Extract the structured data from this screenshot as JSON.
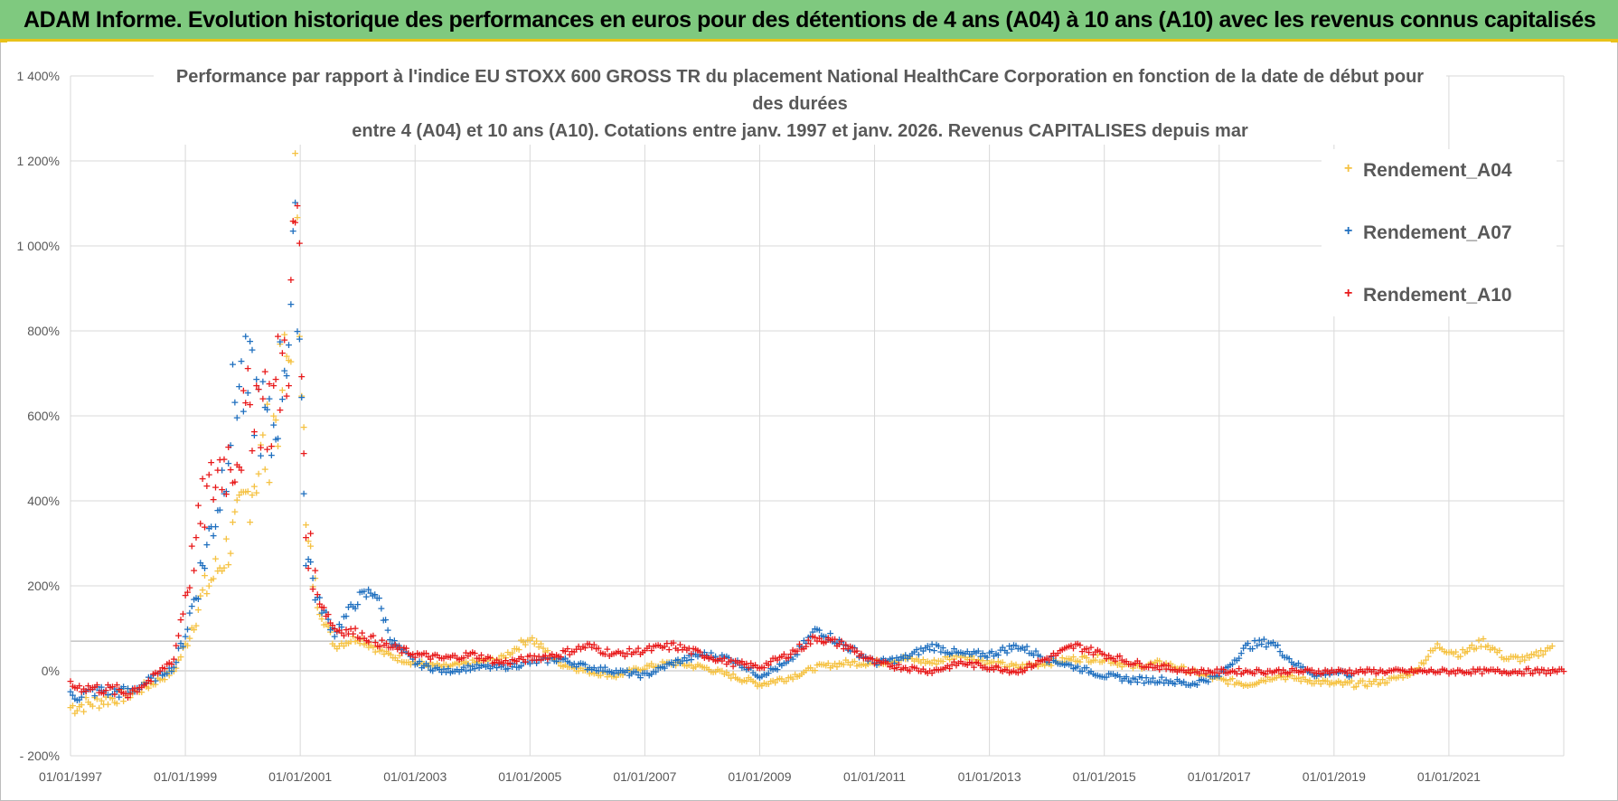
{
  "banner": {
    "title": "ADAM Informe. Evolution historique des performances en euros pour des détentions de 4 ans (A04) à 10 ans (A10) avec les revenus connus capitalisés"
  },
  "colors": {
    "banner_bg": "#7fc97f",
    "banner_accent": "#e8c21a",
    "A04": "#f5c242",
    "A07": "#1f6fbf",
    "A10": "#e8191a",
    "grid": "#d9d9d9",
    "text": "#595959"
  },
  "chart_data": {
    "type": "scatter",
    "title_lines": [
      "Performance par rapport à l'indice EU STOXX 600 GROSS TR  du placement National HealthCare Corporation en fonction de la date de début pour",
      "des durées",
      "entre 4 (A04) et 10 ans (A10). Cotations entre janv. 1997 et janv. 2026. Revenus CAPITALISES depuis mar"
    ],
    "xlabel": "",
    "ylabel": "",
    "x_range": [
      1997.0,
      2023.0
    ],
    "ylim": [
      -200,
      1400
    ],
    "x_tick_labels": [
      "01/01/1997",
      "01/01/1999",
      "01/01/2001",
      "01/01/2003",
      "01/01/2005",
      "01/01/2007",
      "01/01/2009",
      "01/01/2011",
      "01/01/2013",
      "01/01/2015",
      "01/01/2017",
      "01/01/2019",
      "01/01/2021"
    ],
    "x_tick_values": [
      1997,
      1999,
      2001,
      2003,
      2005,
      2007,
      2009,
      2011,
      2013,
      2015,
      2017,
      2019,
      2021
    ],
    "y_ticks": [
      -200,
      0,
      200,
      400,
      600,
      800,
      1000,
      1200,
      1400
    ],
    "y_tick_labels": [
      "- 200%",
      "0%",
      "200%",
      "400%",
      "600%",
      "800%",
      "1 000%",
      "1 200%",
      "1 400%"
    ],
    "legend_position": "top-right",
    "marker": "+",
    "series": [
      {
        "name": "Rendement_A04",
        "x": [
          1997.0,
          1997.5,
          1998.0,
          1998.4,
          1998.8,
          1999.0,
          1999.3,
          1999.6,
          1999.9,
          2000.2,
          2000.5,
          2000.8,
          2000.95,
          2001.1,
          2001.3,
          2001.6,
          2002.0,
          2002.5,
          2003.0,
          2003.5,
          2004.0,
          2004.5,
          2005.0,
          2005.5,
          2006.0,
          2006.5,
          2007.0,
          2007.5,
          2008.0,
          2008.5,
          2009.0,
          2009.5,
          2010.0,
          2010.5,
          2011.0,
          2011.5,
          2012.0,
          2012.5,
          2013.0,
          2013.5,
          2014.0,
          2014.5,
          2015.0,
          2015.5,
          2016.0,
          2016.5,
          2017.0,
          2017.5,
          2018.0,
          2018.5,
          2019.0,
          2019.5,
          2020.0,
          2020.4,
          2020.8,
          2021.2,
          2021.6,
          2022.0,
          2022.4,
          2022.8
        ],
        "values": [
          -85,
          -70,
          -55,
          -30,
          0,
          60,
          180,
          250,
          340,
          460,
          560,
          740,
          1170,
          320,
          160,
          60,
          80,
          40,
          20,
          10,
          20,
          30,
          80,
          20,
          0,
          -10,
          10,
          20,
          10,
          -10,
          -30,
          -15,
          10,
          20,
          20,
          30,
          20,
          40,
          20,
          10,
          20,
          30,
          30,
          10,
          20,
          0,
          -20,
          -30,
          -10,
          -20,
          -30,
          -30,
          -20,
          0,
          60,
          40,
          70,
          30,
          30,
          60
        ]
      },
      {
        "name": "Rendement_A07",
        "x": [
          1997.0,
          1997.5,
          1998.0,
          1998.4,
          1998.8,
          1999.0,
          1999.3,
          1999.6,
          1999.9,
          2000.2,
          2000.5,
          2000.8,
          2000.95,
          2001.1,
          2001.3,
          2001.6,
          2002.0,
          2002.3,
          2002.6,
          2003.0,
          2003.5,
          2004.0,
          2004.5,
          2005.0,
          2005.5,
          2006.0,
          2006.5,
          2007.0,
          2007.5,
          2008.0,
          2008.5,
          2009.0,
          2009.5,
          2010.0,
          2010.5,
          2011.0,
          2011.5,
          2012.0,
          2012.5,
          2013.0,
          2013.5,
          2014.0,
          2014.5,
          2015.0,
          2015.5,
          2016.0,
          2016.5,
          2017.0,
          2017.5,
          2017.9,
          2018.3,
          2018.7,
          2019.0,
          2019.3
        ],
        "values": [
          -60,
          -45,
          -50,
          -20,
          10,
          90,
          250,
          420,
          680,
          650,
          540,
          820,
          980,
          290,
          170,
          90,
          170,
          190,
          70,
          20,
          0,
          10,
          10,
          20,
          30,
          10,
          0,
          -10,
          20,
          40,
          30,
          -10,
          20,
          100,
          60,
          20,
          30,
          60,
          40,
          40,
          60,
          30,
          10,
          -10,
          -20,
          -20,
          -30,
          -10,
          60,
          70,
          20,
          -10,
          0,
          -10
        ]
      },
      {
        "name": "Rendement_A10",
        "x": [
          1997.0,
          1997.5,
          1998.0,
          1998.4,
          1998.8,
          1999.0,
          1999.3,
          1999.6,
          1999.9,
          2000.2,
          2000.5,
          2000.8,
          2000.95,
          2001.1,
          2001.3,
          2001.6,
          2002.0,
          2002.5,
          2003.0,
          2003.5,
          2004.0,
          2004.5,
          2005.0,
          2005.5,
          2006.0,
          2006.5,
          2007.0,
          2007.5,
          2008.0,
          2008.5,
          2009.0,
          2009.5,
          2010.0,
          2010.5,
          2011.0,
          2011.5,
          2012.0,
          2012.5,
          2013.0,
          2013.5,
          2014.0,
          2014.5,
          2015.0,
          2015.5,
          2016.0,
          2016.5,
          2017.0,
          2017.5,
          2018.0,
          2018.5,
          2019.0,
          2019.5,
          2020.0,
          2020.5,
          2021.0,
          2021.5,
          2022.0,
          2022.5,
          2023.0
        ],
        "values": [
          -35,
          -40,
          -50,
          -20,
          30,
          180,
          380,
          480,
          520,
          650,
          620,
          780,
          1100,
          330,
          180,
          100,
          90,
          60,
          40,
          30,
          40,
          20,
          30,
          40,
          60,
          40,
          50,
          60,
          40,
          20,
          10,
          40,
          80,
          60,
          20,
          10,
          0,
          20,
          10,
          0,
          30,
          60,
          40,
          20,
          10,
          0,
          0,
          0,
          0,
          0,
          0,
          0,
          0,
          0,
          0,
          0,
          0,
          0,
          0
        ]
      }
    ]
  }
}
